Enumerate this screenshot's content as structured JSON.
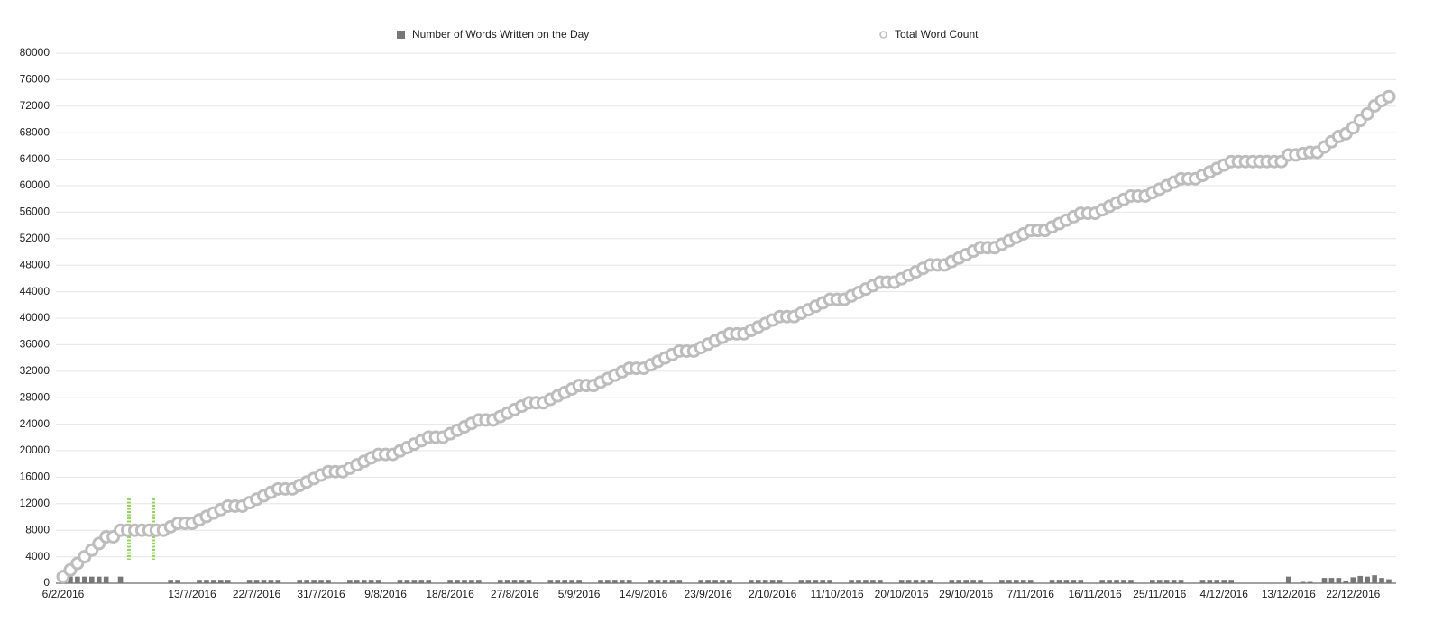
{
  "chart_data": {
    "type": "combo",
    "categories": [
      "6/2/2016",
      null,
      null,
      null,
      null,
      null,
      null,
      null,
      null,
      null,
      null,
      null,
      null,
      null,
      null,
      null,
      null,
      null,
      "13/7/2016",
      null,
      null,
      null,
      null,
      null,
      null,
      null,
      null,
      "22/7/2016",
      null,
      null,
      null,
      null,
      null,
      null,
      null,
      null,
      "31/7/2016",
      null,
      null,
      null,
      null,
      null,
      null,
      null,
      null,
      "9/8/2016",
      null,
      null,
      null,
      null,
      null,
      null,
      null,
      null,
      "18/8/2016",
      null,
      null,
      null,
      null,
      null,
      null,
      null,
      null,
      "27/8/2016",
      null,
      null,
      null,
      null,
      null,
      null,
      null,
      null,
      "5/9/2016",
      null,
      null,
      null,
      null,
      null,
      null,
      null,
      null,
      "14/9/2016",
      null,
      null,
      null,
      null,
      null,
      null,
      null,
      null,
      "23/9/2016",
      null,
      null,
      null,
      null,
      null,
      null,
      null,
      null,
      "2/10/2016",
      null,
      null,
      null,
      null,
      null,
      null,
      null,
      null,
      "11/10/2016",
      null,
      null,
      null,
      null,
      null,
      null,
      null,
      null,
      "20/10/2016",
      null,
      null,
      null,
      null,
      null,
      null,
      null,
      null,
      "29/10/2016",
      null,
      null,
      null,
      null,
      null,
      null,
      null,
      null,
      "7/11/2016",
      null,
      null,
      null,
      null,
      null,
      null,
      null,
      null,
      "16/11/2016",
      null,
      null,
      null,
      null,
      null,
      null,
      null,
      null,
      "25/11/2016",
      null,
      null,
      null,
      null,
      null,
      null,
      null,
      null,
      "4/12/2016",
      null,
      null,
      null,
      null,
      null,
      null,
      null,
      null,
      "13/12/2016",
      null,
      null,
      null,
      null,
      null,
      null,
      null,
      null,
      "22/12/2016",
      null,
      null,
      null,
      null,
      null
    ],
    "series": [
      {
        "name": "Number of Words Written on the Day",
        "type": "bar",
        "color": "#777777",
        "values": [
          1000,
          1000,
          1000,
          1000,
          1000,
          1000,
          1000,
          0,
          1000,
          0,
          0,
          0,
          0,
          0,
          0,
          520,
          520,
          0,
          0,
          520,
          520,
          520,
          520,
          520,
          0,
          0,
          520,
          520,
          520,
          520,
          520,
          0,
          0,
          520,
          520,
          520,
          520,
          520,
          0,
          0,
          520,
          520,
          520,
          520,
          520,
          0,
          0,
          520,
          520,
          520,
          520,
          520,
          0,
          0,
          520,
          520,
          520,
          520,
          520,
          0,
          0,
          520,
          520,
          520,
          520,
          520,
          0,
          0,
          520,
          520,
          520,
          520,
          520,
          0,
          0,
          520,
          520,
          520,
          520,
          520,
          0,
          0,
          520,
          520,
          520,
          520,
          520,
          0,
          0,
          520,
          520,
          520,
          520,
          520,
          0,
          0,
          520,
          520,
          520,
          520,
          520,
          0,
          0,
          520,
          520,
          520,
          520,
          520,
          0,
          0,
          520,
          520,
          520,
          520,
          520,
          0,
          0,
          520,
          520,
          520,
          520,
          520,
          0,
          0,
          520,
          520,
          520,
          520,
          520,
          0,
          0,
          520,
          520,
          520,
          520,
          520,
          0,
          0,
          520,
          520,
          520,
          520,
          520,
          0,
          0,
          520,
          520,
          520,
          520,
          520,
          0,
          0,
          520,
          520,
          520,
          520,
          520,
          0,
          0,
          520,
          520,
          520,
          520,
          520,
          0,
          0,
          0,
          0,
          0,
          0,
          0,
          1000,
          0,
          200,
          200,
          0,
          800,
          800,
          800,
          400,
          900,
          1100,
          1000,
          1200,
          800,
          600
        ]
      },
      {
        "name": "Total Word Count",
        "type": "marker",
        "color": "#bdbdbd",
        "values": [
          1000,
          2000,
          3000,
          4000,
          5000,
          6000,
          7000,
          7000,
          8000,
          8000,
          8000,
          8000,
          8000,
          8000,
          8000,
          8520,
          9040,
          9040,
          9040,
          9560,
          10080,
          10600,
          11120,
          11640,
          11640,
          11640,
          12160,
          12680,
          13200,
          13720,
          14240,
          14240,
          14240,
          14760,
          15280,
          15800,
          16320,
          16840,
          16840,
          16840,
          17360,
          17880,
          18400,
          18920,
          19440,
          19440,
          19440,
          19960,
          20480,
          21000,
          21520,
          22040,
          22040,
          22040,
          22560,
          23080,
          23600,
          24120,
          24640,
          24640,
          24640,
          25160,
          25680,
          26200,
          26720,
          27240,
          27240,
          27240,
          27760,
          28280,
          28800,
          29320,
          29840,
          29840,
          29840,
          30360,
          30880,
          31400,
          31920,
          32440,
          32440,
          32440,
          32960,
          33480,
          34000,
          34520,
          35040,
          35040,
          35040,
          35560,
          36080,
          36600,
          37120,
          37640,
          37640,
          37640,
          38160,
          38680,
          39200,
          39720,
          40240,
          40240,
          40240,
          40760,
          41280,
          41800,
          42320,
          42840,
          42840,
          42840,
          43360,
          43880,
          44400,
          44920,
          45440,
          45440,
          45440,
          45960,
          46480,
          47000,
          47520,
          48040,
          48040,
          48040,
          48560,
          49080,
          49600,
          50120,
          50640,
          50640,
          50640,
          51160,
          51680,
          52200,
          52720,
          53240,
          53240,
          53240,
          53760,
          54280,
          54800,
          55320,
          55840,
          55840,
          55840,
          56360,
          56880,
          57400,
          57920,
          58440,
          58440,
          58440,
          58960,
          59480,
          60000,
          60520,
          61040,
          61040,
          61040,
          61560,
          62080,
          62600,
          63120,
          63640,
          63640,
          63640,
          63640,
          63640,
          63640,
          63640,
          63640,
          64640,
          64640,
          64840,
          65040,
          65040,
          65840,
          66640,
          67440,
          67840,
          68740,
          69840,
          70840,
          72040,
          72840,
          73440
        ]
      }
    ],
    "ylim": [
      0,
      80000
    ],
    "yticks": [
      0,
      4000,
      8000,
      12000,
      16000,
      20000,
      24000,
      28000,
      32000,
      36000,
      40000,
      44000,
      48000,
      52000,
      56000,
      60000,
      64000,
      68000,
      72000,
      76000,
      80000
    ],
    "grid": true,
    "legend": "top"
  }
}
